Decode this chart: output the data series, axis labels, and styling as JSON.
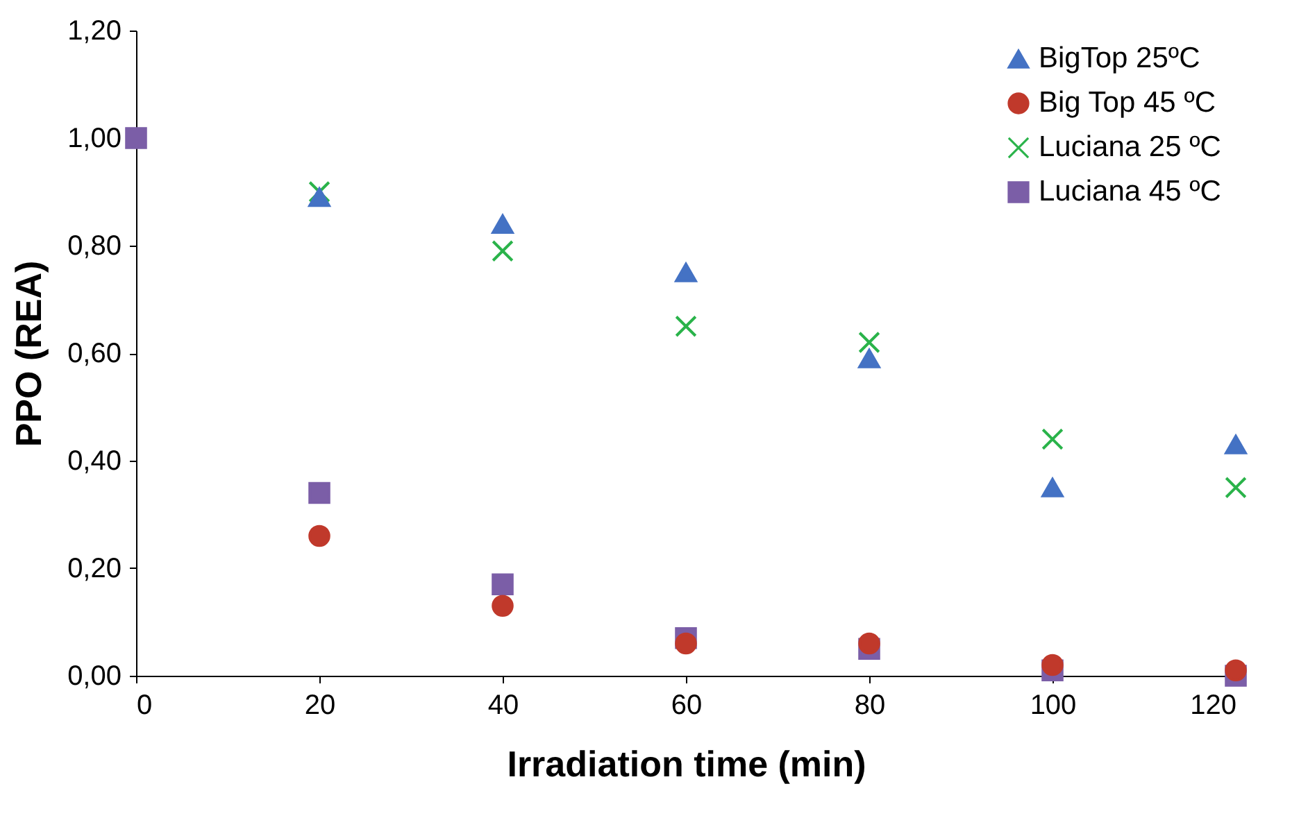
{
  "chart_data": {
    "type": "scatter",
    "xlabel": "Irradiation time (min)",
    "ylabel": "PPO (REA)",
    "x": [
      0,
      20,
      40,
      60,
      80,
      100,
      120
    ],
    "series": [
      {
        "name": "BigTop 25ºC",
        "color": "#4472c4",
        "marker": "triangle",
        "values": [
          null,
          0.89,
          0.84,
          0.75,
          0.59,
          0.35,
          0.43
        ]
      },
      {
        "name": "Big Top 45 ºC",
        "color": "#c0392b",
        "marker": "circle",
        "values": [
          null,
          0.26,
          0.13,
          0.06,
          0.06,
          0.02,
          0.01
        ]
      },
      {
        "name": "Luciana 25 ºC",
        "color": "#2ab34a",
        "marker": "cross",
        "values": [
          null,
          0.9,
          0.79,
          0.65,
          0.62,
          0.44,
          0.35
        ]
      },
      {
        "name": "Luciana 45 ºC",
        "color": "#7b5ea7",
        "marker": "square",
        "values": [
          1.0,
          0.34,
          0.17,
          0.07,
          0.05,
          0.01,
          0.0
        ]
      }
    ],
    "xlim": [
      0,
      120
    ],
    "xticks": [
      0,
      20,
      40,
      60,
      80,
      100,
      120
    ],
    "ylim": [
      0,
      1.2
    ],
    "yticks": [
      {
        "value": 0,
        "label": "0,00"
      },
      {
        "value": 0.2,
        "label": "0,20"
      },
      {
        "value": 0.4,
        "label": "0,40"
      },
      {
        "value": 0.6,
        "label": "0,60"
      },
      {
        "value": 0.8,
        "label": "0,80"
      },
      {
        "value": 1.0,
        "label": "1,00"
      },
      {
        "value": 1.2,
        "label": "1,20"
      }
    ],
    "grid": false,
    "legend": "top right"
  }
}
